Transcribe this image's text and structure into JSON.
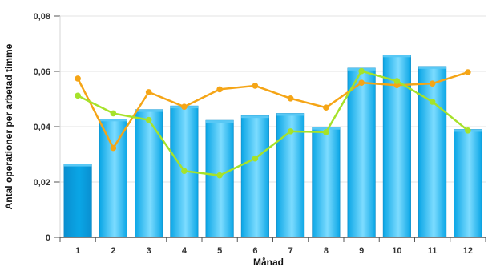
{
  "chart_data": {
    "type": "bar",
    "xlabel": "Månad",
    "ylabel": "Antal operationer per arbetad timme",
    "ylim": [
      0,
      0.08
    ],
    "yticks": [
      "0",
      "0,02",
      "0,04",
      "0,06",
      "0,08"
    ],
    "yticks_values": [
      0,
      0.02,
      0.04,
      0.06,
      0.08
    ],
    "categories": [
      "1",
      "2",
      "3",
      "4",
      "5",
      "6",
      "7",
      "8",
      "9",
      "10",
      "11",
      "12"
    ],
    "values": [
      0.0265,
      0.0428,
      0.0462,
      0.0475,
      0.0423,
      0.044,
      0.0448,
      0.0398,
      0.0612,
      0.066,
      0.0618,
      0.039
    ],
    "bar_color": "#0aa6e6",
    "bar_highlight_color": "#7ddcff",
    "bar_first_color": "#0a8fd0",
    "lines": [
      {
        "color": "#f5a516",
        "values": [
          0.0574,
          0.0323,
          0.0525,
          0.0472,
          0.0535,
          0.0548,
          0.0502,
          0.0469,
          0.0559,
          0.055,
          0.0556,
          0.0597
        ]
      },
      {
        "color": "#a6e22a",
        "values": [
          0.0512,
          0.0448,
          0.0424,
          0.024,
          0.0224,
          0.0285,
          0.0383,
          0.038,
          0.0601,
          0.0565,
          0.049,
          0.0386
        ]
      }
    ],
    "grid": true
  }
}
